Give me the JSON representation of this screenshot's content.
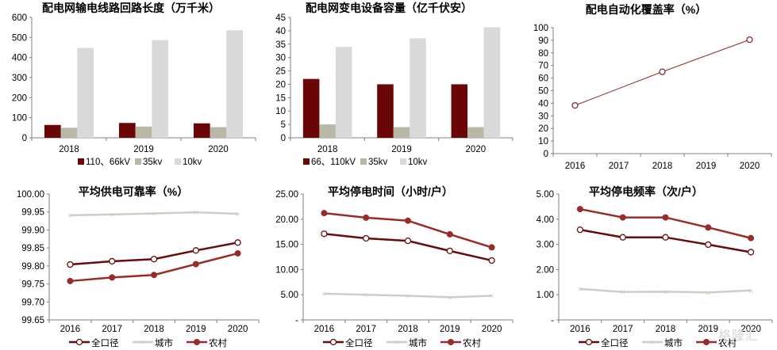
{
  "colors": {
    "bar_high": "#6b0606",
    "bar_35kv": "#b9b8a6",
    "bar_10kv": "#d9d9d9",
    "line_total": "#6b0a0a",
    "line_urban": "#cdcdc4",
    "line_rural": "#9a2b2b",
    "axis": "#7f7f7f"
  },
  "watermark": "格隆汇",
  "chart_data": [
    {
      "id": "line-length",
      "type": "bar",
      "title": "配电网输电线路回路长度（万千米）",
      "categories": [
        "2018",
        "2019",
        "2020"
      ],
      "yticks": [
        "0",
        "100",
        "200",
        "300",
        "400",
        "500",
        "600"
      ],
      "ylim": [
        0,
        600
      ],
      "series": [
        {
          "name": "110、66kV",
          "values": [
            64,
            74,
            72
          ]
        },
        {
          "name": "35kv",
          "values": [
            50,
            56,
            53
          ]
        },
        {
          "name": "10kv",
          "values": [
            448,
            487,
            536
          ]
        }
      ],
      "legend": "bottom"
    },
    {
      "id": "transformer-capacity",
      "type": "bar",
      "title": "配电网变电设备容量（亿千伏安）",
      "categories": [
        "2018",
        "2019",
        "2020"
      ],
      "yticks": [
        "0",
        "5",
        "10",
        "15",
        "20",
        "25",
        "30",
        "35",
        "40",
        "45"
      ],
      "ylim": [
        0,
        45
      ],
      "series": [
        {
          "name": "66、110kV",
          "values": [
            22,
            20,
            20
          ]
        },
        {
          "name": "35kv",
          "values": [
            5,
            4,
            4
          ]
        },
        {
          "name": "10kv",
          "values": [
            34,
            37.2,
            41.3
          ]
        }
      ],
      "legend": "bottom"
    },
    {
      "id": "automation-coverage",
      "type": "line",
      "title": "配电自动化覆盖率（%）",
      "categories": [
        "2016",
        "2017",
        "2018",
        "2019",
        "2020"
      ],
      "yticks": [
        "0",
        "10",
        "20",
        "30",
        "40",
        "50",
        "60",
        "70",
        "80",
        "90",
        "100"
      ],
      "ylim": [
        0,
        100
      ],
      "series": [
        {
          "name": "配电自动化覆盖率",
          "values": [
            38.3,
            null,
            65,
            null,
            90.5
          ],
          "marker": "open"
        }
      ],
      "legend": "none"
    },
    {
      "id": "supply-reliability",
      "type": "line",
      "title": "平均供电可靠率（%）",
      "categories": [
        "2016",
        "2017",
        "2018",
        "2019",
        "2020"
      ],
      "yticks": [
        "99.65",
        "99.70",
        "99.75",
        "99.80",
        "99.85",
        "99.90",
        "99.95",
        "100.00"
      ],
      "ylim": [
        99.65,
        100.0
      ],
      "series": [
        {
          "name": "全口径",
          "values": [
            99.804,
            99.813,
            99.819,
            99.843,
            99.865
          ],
          "marker": "open"
        },
        {
          "name": "城市",
          "values": [
            99.941,
            99.943,
            99.946,
            99.949,
            99.945
          ],
          "marker": "x"
        },
        {
          "name": "农村",
          "values": [
            99.758,
            99.768,
            99.775,
            99.805,
            99.835
          ],
          "marker": "filled"
        }
      ],
      "legend": "bottom"
    },
    {
      "id": "outage-duration",
      "type": "line",
      "title": "平均停电时间（小时/户）",
      "categories": [
        "2016",
        "2017",
        "2018",
        "2019",
        "2020"
      ],
      "yticks": [
        "-",
        "5.00",
        "10.00",
        "15.00",
        "20.00",
        "25.00"
      ],
      "ylim": [
        0,
        25
      ],
      "series": [
        {
          "name": "全口径",
          "values": [
            17.1,
            16.2,
            15.7,
            13.7,
            11.8
          ],
          "marker": "open"
        },
        {
          "name": "城市",
          "values": [
            5.2,
            5.0,
            4.8,
            4.5,
            4.8
          ],
          "marker": "x"
        },
        {
          "name": "农村",
          "values": [
            21.2,
            20.3,
            19.7,
            17.0,
            14.4
          ],
          "marker": "filled"
        }
      ],
      "legend": "bottom"
    },
    {
      "id": "outage-frequency",
      "type": "line",
      "title": "平均停电频率（次/户）",
      "categories": [
        "2016",
        "2017",
        "2018",
        "2019",
        "2020"
      ],
      "yticks": [
        "-",
        "1.00",
        "2.00",
        "3.00",
        "4.00",
        "5.00"
      ],
      "ylim": [
        0,
        5
      ],
      "series": [
        {
          "name": "全口径",
          "values": [
            3.58,
            3.28,
            3.28,
            2.99,
            2.69
          ],
          "marker": "open"
        },
        {
          "name": "城市",
          "values": [
            1.23,
            1.11,
            1.12,
            1.09,
            1.17
          ],
          "marker": "x"
        },
        {
          "name": "农村",
          "values": [
            4.4,
            4.07,
            4.07,
            3.67,
            3.25
          ],
          "marker": "filled"
        }
      ],
      "legend": "bottom"
    }
  ]
}
